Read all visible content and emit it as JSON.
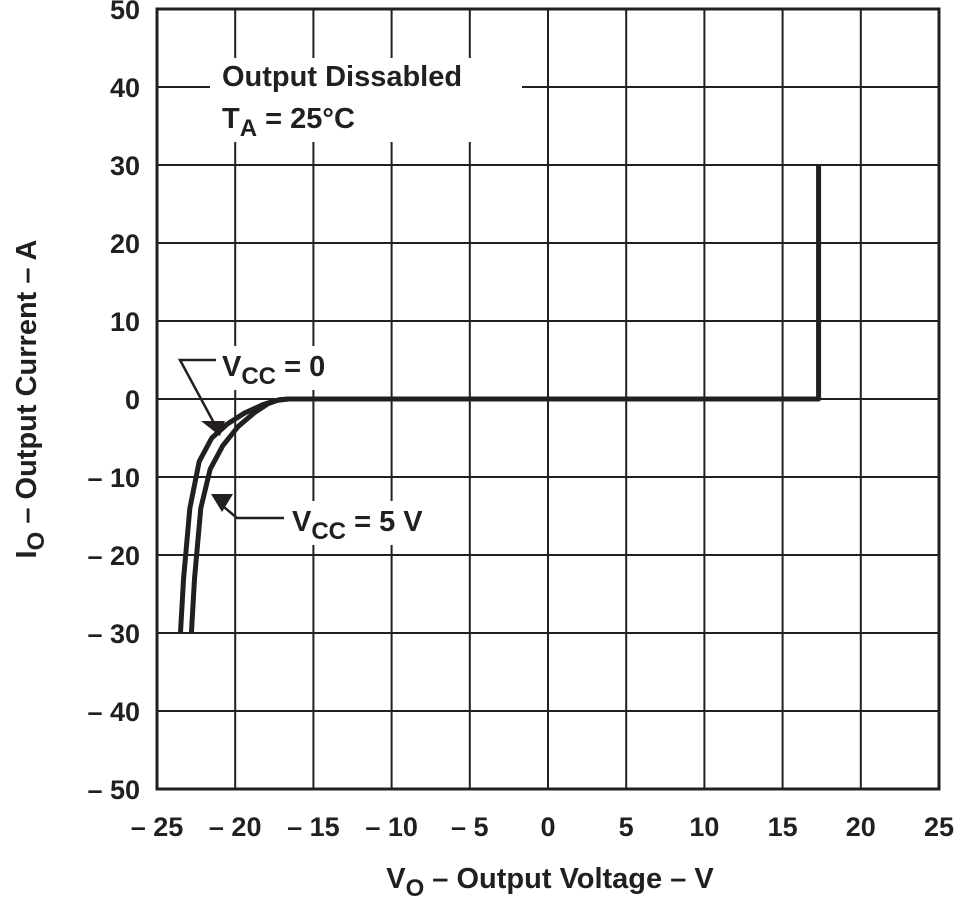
{
  "chart_data": {
    "type": "line",
    "xlabel_main": "V",
    "xlabel_sub": "O",
    "xlabel_rest": " – Output Voltage – V",
    "ylabel_main": "I",
    "ylabel_sub": "O",
    "ylabel_rest": " – Output Current – A",
    "xlim": [
      -25,
      25
    ],
    "ylim": [
      -50,
      50
    ],
    "x_ticks": [
      -25,
      -20,
      -15,
      -10,
      -5,
      0,
      5,
      10,
      15,
      20,
      25
    ],
    "x_tick_labels": [
      "– 25",
      "– 20",
      "– 15",
      "– 10",
      "– 5",
      "0",
      "5",
      "10",
      "15",
      "20",
      "25"
    ],
    "y_ticks": [
      50,
      40,
      30,
      20,
      10,
      0,
      -10,
      -20,
      -30,
      -40,
      -50
    ],
    "y_tick_labels": [
      "50",
      "40",
      "30",
      "20",
      "10",
      "0",
      "– 10",
      "– 20",
      "– 30",
      "– 40",
      "– 50"
    ],
    "grid": true,
    "annotation_line1": "Output Dissabled",
    "annotation_line2_main": "T",
    "annotation_line2_sub": "A",
    "annotation_line2_rest": " = 25°C",
    "series": [
      {
        "label_main": "V",
        "label_sub": "CC",
        "label_rest": " = 0",
        "x": [
          -23.5,
          -23.3,
          -22.9,
          -22.3,
          -21.5,
          -20.5,
          -19.4,
          -18.2,
          -17.4,
          -16.6,
          17.3,
          17.3
        ],
        "y": [
          -30,
          -23,
          -14,
          -8,
          -5,
          -3.2,
          -1.8,
          -0.7,
          -0.2,
          0,
          0,
          30
        ]
      },
      {
        "label_main": "V",
        "label_sub": "CC",
        "label_rest": " = 5 V",
        "x": [
          -22.8,
          -22.6,
          -22.2,
          -21.6,
          -20.8,
          -19.8,
          -18.8,
          -17.9,
          -17.2,
          -16.6
        ],
        "y": [
          -30,
          -23,
          -14,
          -9,
          -6,
          -3.5,
          -1.8,
          -0.6,
          -0.1,
          0
        ]
      }
    ]
  }
}
